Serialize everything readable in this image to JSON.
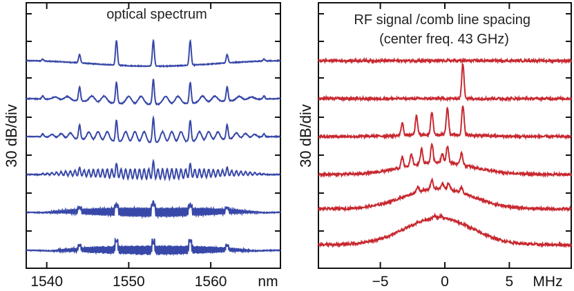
{
  "chart_data": [
    {
      "type": "line",
      "title": "optical spectrum",
      "xlabel": "",
      "ylabel": "30 dB/div",
      "x_unit": "nm",
      "xlim": [
        1537.5,
        1568.5
      ],
      "x_ticks": [
        1540,
        1550,
        1560
      ],
      "grid": false,
      "color": "#3848a8",
      "series": [
        {
          "center": 1553.0,
          "fsr": 4.5,
          "sub": 0,
          "peak_heights": [
            0.33,
            0.65,
            0.75
          ],
          "base_level": 0.2,
          "envelope_halfwidth": 14.5
        },
        {
          "center": 1553.0,
          "fsr": 4.5,
          "sub": 2,
          "peak_heights": [
            0.55,
            0.55,
            0.72
          ],
          "base_level": 0.22,
          "envelope_halfwidth": 14.5
        },
        {
          "center": 1553.0,
          "fsr": 4.5,
          "sub": 3,
          "peak_heights": [
            0.55,
            0.55,
            0.7
          ],
          "base_level": 0.3,
          "envelope_halfwidth": 14.5
        },
        {
          "center": 1553.0,
          "fsr": 4.5,
          "sub": 7,
          "peak_heights": [
            0.38,
            0.42,
            0.55
          ],
          "base_level": 0.32,
          "envelope_halfwidth": 14.0
        },
        {
          "center": 1553.0,
          "fsr": 4.5,
          "sub": 20,
          "peak_heights": [
            0.34,
            0.36,
            0.5
          ],
          "base_level": 0.3,
          "envelope_halfwidth": 13.5
        },
        {
          "center": 1553.0,
          "fsr": 4.5,
          "sub": 30,
          "peak_heights": [
            0.36,
            0.4,
            0.4
          ],
          "base_level": 0.3,
          "envelope_halfwidth": 12.5
        }
      ]
    },
    {
      "type": "line",
      "title": "RF signal /comb line spacing\n(center freq. 43 GHz)",
      "xlabel": "",
      "ylabel": "30 dB/div",
      "x_unit": "MHz",
      "xlim": [
        -9.8,
        9.8
      ],
      "x_ticks": [
        -5,
        0,
        5
      ],
      "grid": false,
      "color": "#c82830",
      "series": [
        {
          "peaks_MHz": [],
          "peak_heights": [],
          "hump_height": 0.0
        },
        {
          "peaks_MHz": [
            1.4
          ],
          "peak_heights": [
            0.85
          ],
          "hump_height": 0.0
        },
        {
          "peaks_MHz": [
            -3.3,
            -2.2,
            -1.0,
            0.2,
            1.4
          ],
          "peak_heights": [
            0.3,
            0.45,
            0.55,
            0.65,
            0.7
          ],
          "hump_height": 0.05
        },
        {
          "peaks_MHz": [
            -3.3,
            -2.6,
            -1.8,
            -1.0,
            -0.2,
            0.2,
            1.3
          ],
          "peak_heights": [
            0.25,
            0.3,
            0.35,
            0.45,
            0.2,
            0.4,
            0.3
          ],
          "hump_height": 0.3
        },
        {
          "peaks_MHz": [
            -2.1,
            -1.0,
            -0.2,
            0.3,
            1.3
          ],
          "peak_heights": [
            0.12,
            0.2,
            0.12,
            0.15,
            0.12
          ],
          "hump_height": 0.5
        },
        {
          "peaks_MHz": [
            -0.8,
            -0.3
          ],
          "peak_heights": [
            0.05,
            0.05
          ],
          "hump_height": 0.65
        }
      ]
    }
  ]
}
